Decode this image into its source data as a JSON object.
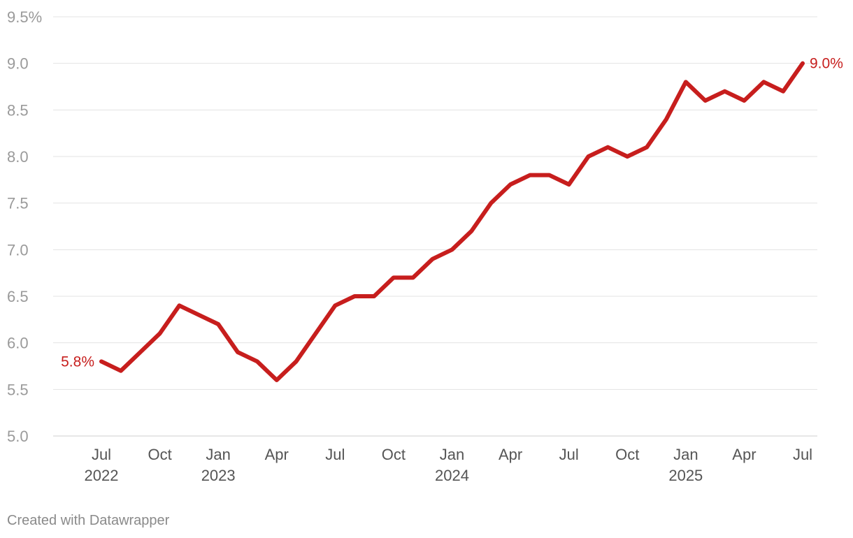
{
  "chart_data": {
    "type": "line",
    "x": [
      "2022-07",
      "2022-08",
      "2022-09",
      "2022-10",
      "2022-11",
      "2022-12",
      "2023-01",
      "2023-02",
      "2023-03",
      "2023-04",
      "2023-05",
      "2023-06",
      "2023-07",
      "2023-08",
      "2023-09",
      "2023-10",
      "2023-11",
      "2023-12",
      "2024-01",
      "2024-02",
      "2024-03",
      "2024-04",
      "2024-05",
      "2024-06",
      "2024-07",
      "2024-08",
      "2024-09",
      "2024-10",
      "2024-11",
      "2024-12",
      "2025-01",
      "2025-02",
      "2025-03",
      "2025-04",
      "2025-05",
      "2025-06",
      "2025-07"
    ],
    "series": [
      {
        "color": "#c71e1d",
        "values": [
          5.8,
          5.7,
          5.9,
          6.1,
          6.4,
          6.3,
          6.2,
          5.9,
          5.8,
          5.6,
          5.8,
          6.1,
          6.4,
          6.5,
          6.5,
          6.7,
          6.7,
          6.9,
          7.0,
          7.2,
          7.5,
          7.7,
          7.8,
          7.8,
          7.7,
          8.0,
          8.1,
          8.0,
          8.1,
          8.4,
          8.8,
          8.6,
          8.7,
          8.6,
          8.8,
          8.7,
          9.0
        ]
      }
    ],
    "ylim": [
      5.0,
      9.5
    ],
    "yticks": [
      {
        "value": 9.5,
        "label": "9.5%"
      },
      {
        "value": 9.0,
        "label": "9.0"
      },
      {
        "value": 8.5,
        "label": "8.5"
      },
      {
        "value": 8.0,
        "label": "8.0"
      },
      {
        "value": 7.5,
        "label": "7.5"
      },
      {
        "value": 7.0,
        "label": "7.0"
      },
      {
        "value": 6.5,
        "label": "6.5"
      },
      {
        "value": 6.0,
        "label": "6.0"
      },
      {
        "value": 5.5,
        "label": "5.5"
      },
      {
        "value": 5.0,
        "label": "5.0"
      }
    ],
    "xticks": [
      {
        "month": "2022-07",
        "label": "Jul",
        "year": "2022"
      },
      {
        "month": "2022-10",
        "label": "Oct",
        "year": ""
      },
      {
        "month": "2023-01",
        "label": "Jan",
        "year": "2023"
      },
      {
        "month": "2023-04",
        "label": "Apr",
        "year": ""
      },
      {
        "month": "2023-07",
        "label": "Jul",
        "year": ""
      },
      {
        "month": "2023-10",
        "label": "Oct",
        "year": ""
      },
      {
        "month": "2024-01",
        "label": "Jan",
        "year": "2024"
      },
      {
        "month": "2024-04",
        "label": "Apr",
        "year": ""
      },
      {
        "month": "2024-07",
        "label": "Jul",
        "year": ""
      },
      {
        "month": "2024-10",
        "label": "Oct",
        "year": ""
      },
      {
        "month": "2025-01",
        "label": "Jan",
        "year": "2025"
      },
      {
        "month": "2025-04",
        "label": "Apr",
        "year": ""
      },
      {
        "month": "2025-07",
        "label": "Jul",
        "year": ""
      }
    ],
    "annotations": {
      "start_label": "5.8%",
      "end_label": "9.0%"
    },
    "grid": true
  },
  "footer": {
    "credit": "Created with Datawrapper"
  }
}
